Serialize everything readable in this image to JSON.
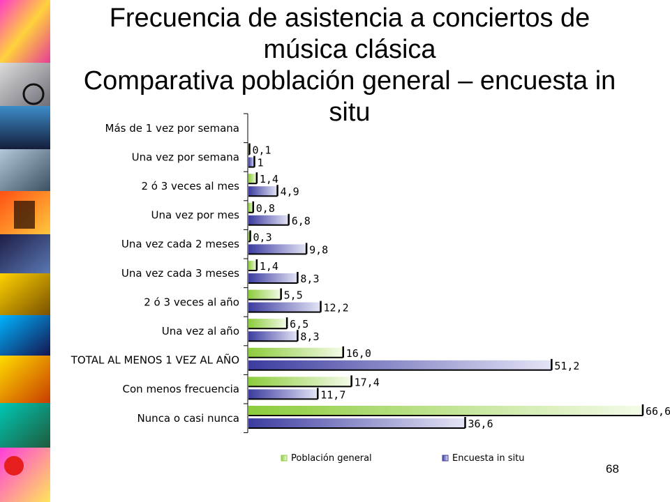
{
  "slide": {
    "number": "68"
  },
  "chart_data": {
    "type": "bar",
    "orientation": "horizontal",
    "title": "Frecuencia de asistencia a conciertos de música clásica Comparativa población general – encuesta in situ",
    "title_lines": [
      "Frecuencia de asistencia a conciertos de",
      "música clásica",
      "Comparativa población general – encuesta in",
      "situ"
    ],
    "categories": [
      "Más de 1 vez por semana",
      "Una vez por semana",
      "2 ó 3 veces al mes",
      "Una vez por mes",
      "Una vez cada 2 meses",
      "Una vez cada 3 meses",
      "2 ó 3 veces al año",
      "Una vez al año",
      "TOTAL AL MENOS 1 VEZ AL AÑO",
      "Con menos frecuencia",
      "Nunca o casi  nunca"
    ],
    "series": [
      {
        "name": "Población general",
        "color": "#8ccc3c",
        "values": [
          null,
          0.1,
          1.4,
          0.8,
          0.3,
          1.4,
          5.5,
          6.5,
          16.0,
          17.4,
          66.6
        ],
        "labels": [
          "",
          "0,1",
          "1,4",
          "0,8",
          "0,3",
          "1,4",
          "5,5",
          "6,5",
          "16,0",
          "17,4",
          "66,6"
        ]
      },
      {
        "name": "Encuesta in situ",
        "color": "#3c3ca0",
        "values": [
          null,
          1,
          4.9,
          6.8,
          9.8,
          8.3,
          12.2,
          8.3,
          51.2,
          11.7,
          36.6
        ],
        "labels": [
          "",
          "1",
          "4,9",
          "6,8",
          "9,8",
          "8,3",
          "12,2",
          "8,3",
          "51,2",
          "11,7",
          "36,6"
        ]
      }
    ],
    "xlim": [
      0,
      70
    ],
    "grid": false,
    "legend": "bottom"
  }
}
